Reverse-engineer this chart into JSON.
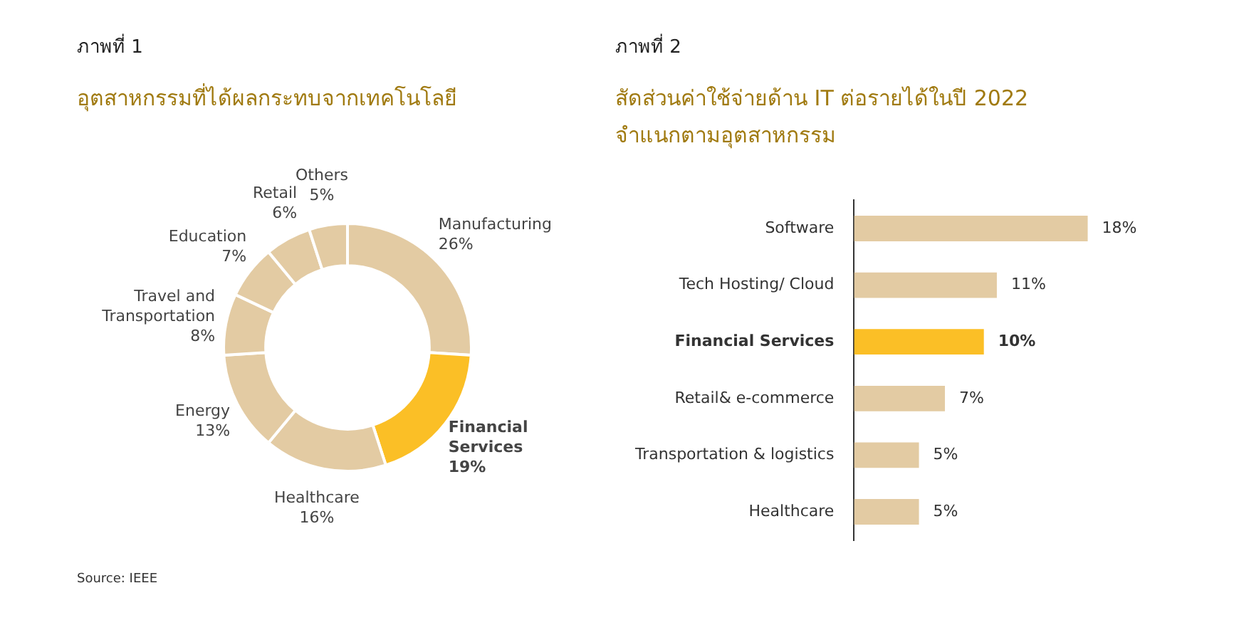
{
  "chart_data": [
    {
      "type": "donut",
      "title": "ภาพที่ 1",
      "subtitle": "อุตสาหกรรมที่ได้ผลกระทบจากเทคโนโลยี",
      "categories": [
        "Manufacturing",
        "Financial Services",
        "Healthcare",
        "Energy",
        "Travel and Transportation",
        "Education",
        "Retail",
        "Others"
      ],
      "values": [
        26,
        19,
        16,
        13,
        8,
        7,
        6,
        5
      ],
      "value_labels": [
        "26%",
        "19%",
        "16%",
        "13%",
        "8%",
        "7%",
        "6%",
        "5%"
      ],
      "colors": [
        "#e3cba3",
        "#fbbf26",
        "#e3cba3",
        "#e3cba3",
        "#e3cba3",
        "#e3cba3",
        "#e3cba3",
        "#e3cba3"
      ],
      "legend": false,
      "annotations": [
        "Source: IEEE"
      ]
    },
    {
      "type": "bar",
      "orientation": "horizontal",
      "title": "ภาพที่ 2",
      "subtitle": "สัดส่วนค่าใช้จ่ายด้าน IT ต่อรายได้ในปี 2022\nจำแนกตามอุตสาหกรรม",
      "categories": [
        "Software",
        "Tech Hosting/ Cloud",
        "Financial Services",
        "Retail& e-commerce",
        "Transportation & logistics",
        "Healthcare"
      ],
      "values": [
        18,
        11,
        10,
        7,
        5,
        5
      ],
      "value_labels": [
        "18%",
        "11%",
        "10%",
        "7%",
        "5%",
        "5%"
      ],
      "colors": [
        "#e3cba3",
        "#e3cba3",
        "#fbbf26",
        "#e3cba3",
        "#e3cba3",
        "#e3cba3"
      ],
      "legend": false,
      "grid": false
    }
  ]
}
